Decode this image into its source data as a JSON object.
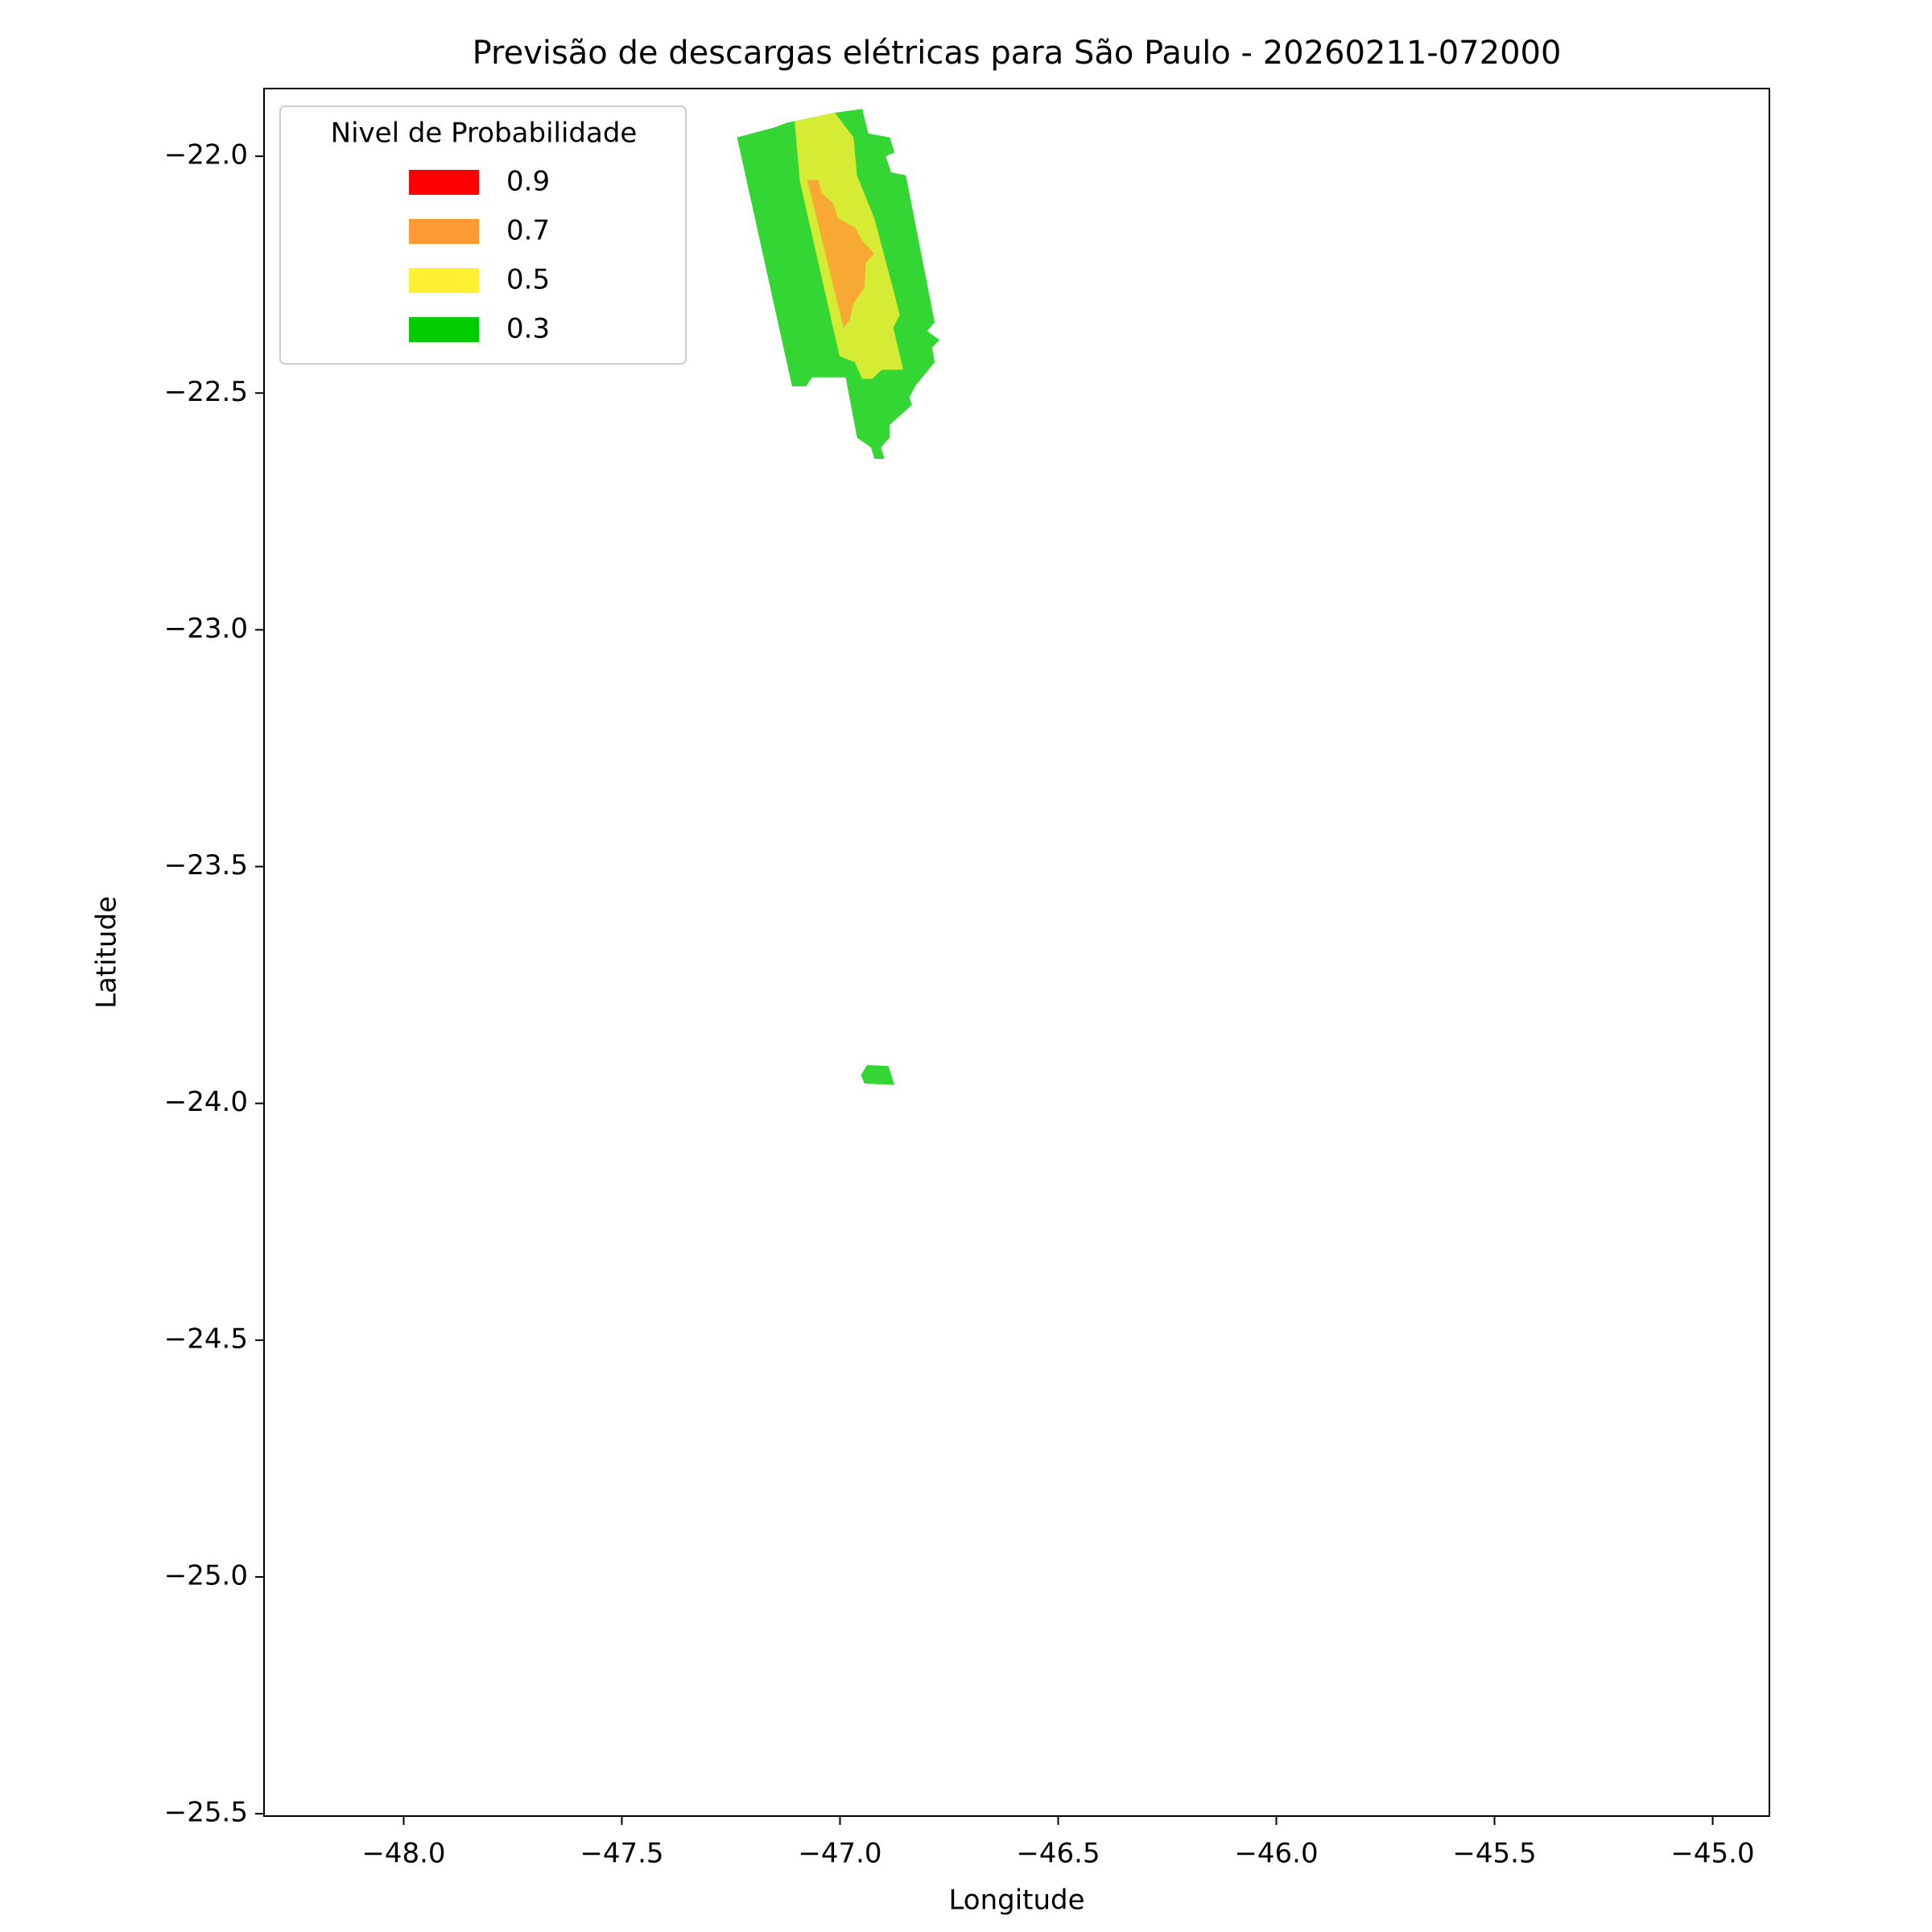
{
  "chart_data": {
    "type": "contour",
    "title": "Previsão de descargas elétricas para São Paulo - 20260211-072000",
    "xlabel": "Longitude",
    "ylabel": "Latitude",
    "xlim": [
      -48.32,
      -44.87
    ],
    "ylim": [
      -25.505,
      -21.857
    ],
    "xticks": [
      {
        "value": -48,
        "label": "−48.0"
      },
      {
        "value": -47.5,
        "label": "−47.5"
      },
      {
        "value": -47,
        "label": "−47.0"
      },
      {
        "value": -46.5,
        "label": "−46.5"
      },
      {
        "value": -46,
        "label": "−46.0"
      },
      {
        "value": -45.5,
        "label": "−45.5"
      },
      {
        "value": -45,
        "label": "−45.0"
      }
    ],
    "yticks": [
      {
        "value": -22,
        "label": "−22.0"
      },
      {
        "value": -22.5,
        "label": "−22.5"
      },
      {
        "value": -23,
        "label": "−23.0"
      },
      {
        "value": -23.5,
        "label": "−23.5"
      },
      {
        "value": -24,
        "label": "−24.0"
      },
      {
        "value": -24.5,
        "label": "−24.5"
      },
      {
        "value": -25,
        "label": "−25.0"
      },
      {
        "value": -25.5,
        "label": "−25.5"
      }
    ],
    "legend_title": "Nivel de Probabilidade",
    "legend": "upper left",
    "opacity": 0.8,
    "levels": [
      {
        "value": 0.9,
        "color": "#ff0000",
        "polygons": []
      },
      {
        "value": 0.7,
        "color": "#ff9933",
        "polygons": [
          [
            [
              -47.075,
              -22.05
            ],
            [
              -47.05,
              -22.05
            ],
            [
              -47.041,
              -22.079
            ],
            [
              -47.015,
              -22.1
            ],
            [
              -47.004,
              -22.132
            ],
            [
              -46.966,
              -22.15
            ],
            [
              -46.949,
              -22.179
            ],
            [
              -46.921,
              -22.206
            ],
            [
              -46.941,
              -22.224
            ],
            [
              -46.944,
              -22.277
            ],
            [
              -46.969,
              -22.311
            ],
            [
              -46.978,
              -22.346
            ],
            [
              -46.992,
              -22.362
            ],
            [
              -47.018,
              -22.264
            ]
          ]
        ]
      },
      {
        "value": 0.5,
        "color": "#fff033",
        "polygons": [
          [
            [
              -47.104,
              -21.926
            ],
            [
              -47.012,
              -21.908
            ],
            [
              -46.969,
              -21.96
            ],
            [
              -46.961,
              -22.04
            ],
            [
              -46.921,
              -22.132
            ],
            [
              -46.883,
              -22.264
            ],
            [
              -46.863,
              -22.335
            ],
            [
              -46.878,
              -22.362
            ],
            [
              -46.855,
              -22.451
            ],
            [
              -46.904,
              -22.451
            ],
            [
              -46.926,
              -22.47
            ],
            [
              -46.949,
              -22.47
            ],
            [
              -46.966,
              -22.435
            ],
            [
              -47.001,
              -22.422
            ],
            [
              -47.092,
              -22.053
            ]
          ]
        ]
      },
      {
        "value": 0.3,
        "color": "#00cc00",
        "polygons": [
          [
            [
              -47.236,
              -21.96
            ],
            [
              -47.15,
              -21.939
            ],
            [
              -47.121,
              -21.929
            ],
            [
              -47.012,
              -21.908
            ],
            [
              -46.949,
              -21.9
            ],
            [
              -46.935,
              -21.952
            ],
            [
              -46.886,
              -21.96
            ],
            [
              -46.875,
              -21.992
            ],
            [
              -46.895,
              -22.0
            ],
            [
              -46.883,
              -22.034
            ],
            [
              -46.849,
              -22.04
            ],
            [
              -46.783,
              -22.351
            ],
            [
              -46.8,
              -22.369
            ],
            [
              -46.772,
              -22.388
            ],
            [
              -46.789,
              -22.404
            ],
            [
              -46.783,
              -22.435
            ],
            [
              -46.826,
              -22.483
            ],
            [
              -46.841,
              -22.509
            ],
            [
              -46.835,
              -22.525
            ],
            [
              -46.886,
              -22.567
            ],
            [
              -46.886,
              -22.594
            ],
            [
              -46.906,
              -22.615
            ],
            [
              -46.898,
              -22.639
            ],
            [
              -46.921,
              -22.639
            ],
            [
              -46.929,
              -22.615
            ],
            [
              -46.961,
              -22.594
            ],
            [
              -46.987,
              -22.467
            ],
            [
              -47.064,
              -22.467
            ],
            [
              -47.078,
              -22.486
            ],
            [
              -47.11,
              -22.486
            ]
          ],
          [
            [
              -46.952,
              -23.94
            ],
            [
              -46.938,
              -23.919
            ],
            [
              -46.889,
              -23.921
            ],
            [
              -46.875,
              -23.961
            ],
            [
              -46.944,
              -23.958
            ]
          ]
        ]
      }
    ]
  }
}
